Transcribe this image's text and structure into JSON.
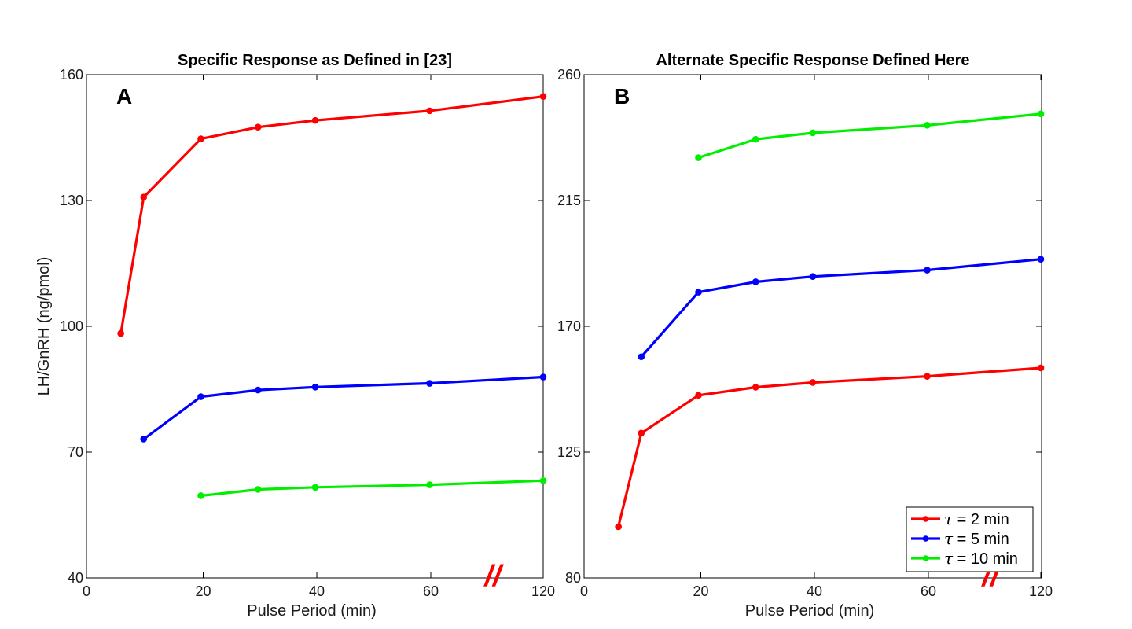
{
  "chart_data": [
    {
      "type": "line",
      "panel": "A",
      "title": "Specific Response as Defined in [23]",
      "xlabel": "Pulse Period (min)",
      "ylabel": "LH/GnRH (ng/pmol)",
      "ylim": [
        40,
        160
      ],
      "yticks": [
        "40",
        "70",
        "100",
        "130",
        "160"
      ],
      "xticks": [
        "0",
        "20",
        "40",
        "60",
        "120"
      ],
      "axis_break_marker": "//",
      "grid": false,
      "series": [
        {
          "color": "#ff0000",
          "x": [
            6,
            10,
            20,
            30,
            40,
            60,
            120
          ],
          "y": [
            98.3,
            130.8,
            144.7,
            147.5,
            149.1,
            151.4,
            154.8
          ]
        },
        {
          "color": "#0000ff",
          "x": [
            10,
            20,
            30,
            40,
            60,
            120
          ],
          "y": [
            73.1,
            83.2,
            84.8,
            85.5,
            86.4,
            87.9
          ]
        },
        {
          "color": "#00ee00",
          "x": [
            20,
            30,
            40,
            60,
            120
          ],
          "y": [
            59.6,
            61.1,
            61.6,
            62.2,
            63.2
          ]
        }
      ]
    },
    {
      "type": "line",
      "panel": "B",
      "title": "Alternate Specific Response Defined Here",
      "xlabel": "Pulse Period (min)",
      "ylabel": "",
      "ylim": [
        80,
        260
      ],
      "yticks": [
        "80",
        "125",
        "170",
        "215",
        "260"
      ],
      "xticks": [
        "0",
        "20",
        "40",
        "60",
        "120"
      ],
      "axis_break_marker": "//",
      "grid": false,
      "legend_position": "bottom-right",
      "legend": [
        {
          "symbol": "τ",
          "text": " = 2 min",
          "color": "#ff0000"
        },
        {
          "symbol": "τ",
          "text": " = 5 min",
          "color": "#0000ff"
        },
        {
          "symbol": "τ",
          "text": " = 10 min",
          "color": "#00ee00"
        }
      ],
      "series": [
        {
          "color": "#ff0000",
          "x": [
            6,
            10,
            20,
            30,
            40,
            60,
            120
          ],
          "y": [
            98.3,
            131.8,
            145.3,
            148.2,
            149.9,
            152.1,
            155.1
          ]
        },
        {
          "color": "#0000ff",
          "x": [
            10,
            20,
            30,
            40,
            60,
            120
          ],
          "y": [
            159.1,
            182.2,
            185.9,
            187.8,
            190.1,
            194.0
          ]
        },
        {
          "color": "#00ee00",
          "x": [
            20,
            30,
            40,
            60,
            120
          ],
          "y": [
            230.3,
            236.9,
            239.2,
            241.9,
            246.0
          ]
        }
      ]
    }
  ]
}
